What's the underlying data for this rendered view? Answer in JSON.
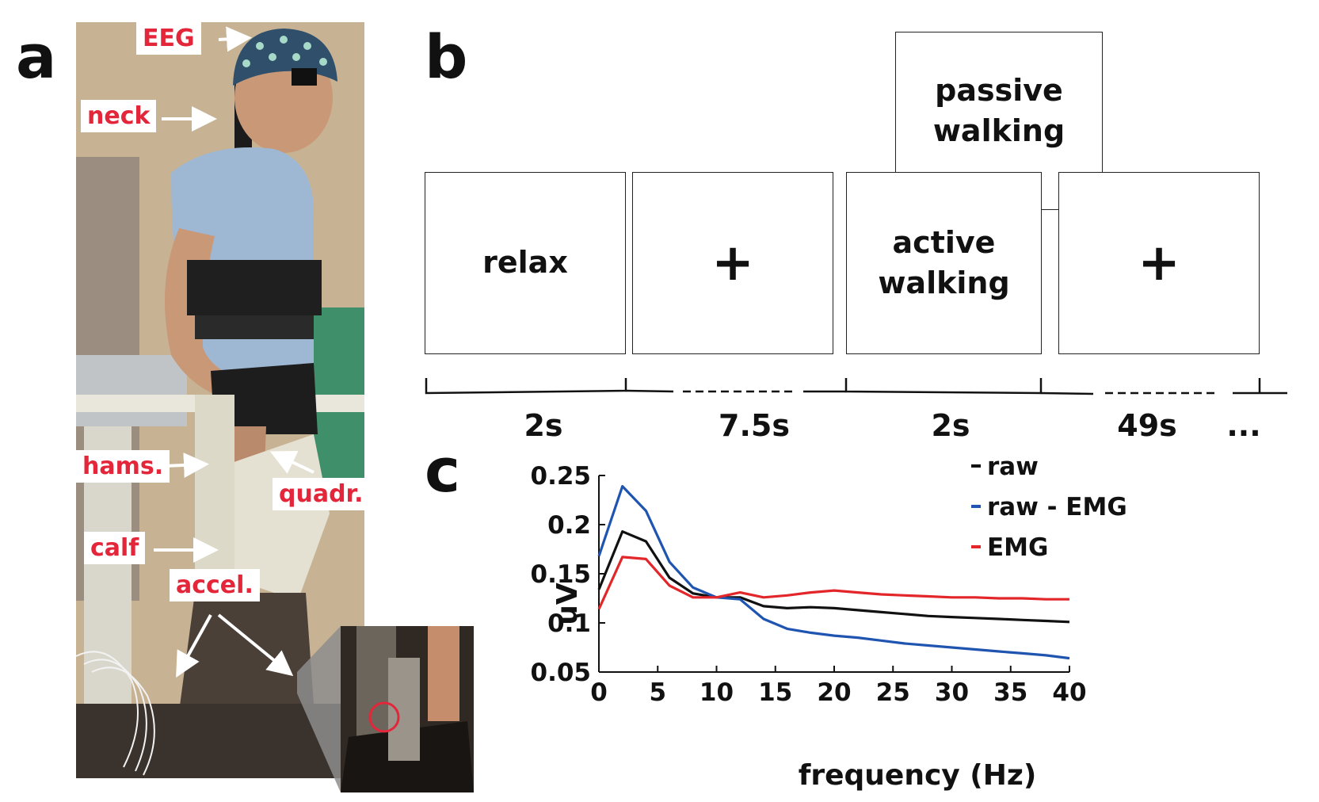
{
  "panels": {
    "a": "a",
    "b": "b",
    "c": "c"
  },
  "photo_labels": {
    "eeg": "EEG",
    "neck": "neck",
    "hams": "hams.",
    "quadr": "quadr.",
    "calf": "calf",
    "accel": "accel."
  },
  "colors": {
    "label_red": "#e3263a",
    "raw": "#111111",
    "raw_minus_emg": "#1f55b0",
    "emg": "#e3262a"
  },
  "protocol": {
    "boxes": {
      "relax": "relax",
      "fixation_1": "+",
      "active_line1": "active",
      "active_line2": "walking",
      "passive_line1": "passive",
      "passive_line2": "walking",
      "fixation_2": "+"
    },
    "durations": [
      "2s",
      "7.5s",
      "2s",
      "49s",
      "..."
    ]
  },
  "chart_data": {
    "type": "line",
    "xlabel": "frequency (Hz)",
    "ylabel": "uV",
    "xlim": [
      0,
      40
    ],
    "ylim": [
      0.05,
      0.25
    ],
    "xticks": [
      0,
      5,
      10,
      15,
      20,
      25,
      30,
      35,
      40
    ],
    "yticks": [
      0.05,
      0.1,
      0.15,
      0.2,
      0.25
    ],
    "ytick_labels": [
      "0.05",
      "0.1",
      "0.15",
      "0.2",
      "0.25"
    ],
    "grid": false,
    "legend_position": "top-right",
    "x": [
      0,
      2,
      4,
      6,
      8,
      10,
      12,
      14,
      16,
      18,
      20,
      22,
      24,
      26,
      28,
      30,
      32,
      34,
      36,
      38,
      40
    ],
    "series": [
      {
        "name": "raw",
        "color": "#111111",
        "values": [
          0.134,
          0.193,
          0.183,
          0.146,
          0.13,
          0.126,
          0.126,
          0.117,
          0.115,
          0.116,
          0.115,
          0.113,
          0.111,
          0.109,
          0.107,
          0.106,
          0.105,
          0.104,
          0.103,
          0.102,
          0.101
        ]
      },
      {
        "name": "raw - EMG",
        "color": "#1f55b0",
        "values": [
          0.168,
          0.239,
          0.214,
          0.162,
          0.136,
          0.126,
          0.124,
          0.104,
          0.094,
          0.09,
          0.087,
          0.085,
          0.082,
          0.079,
          0.077,
          0.075,
          0.073,
          0.071,
          0.069,
          0.067,
          0.064
        ]
      },
      {
        "name": "EMG",
        "color": "#e3262a",
        "values": [
          0.114,
          0.167,
          0.165,
          0.138,
          0.126,
          0.126,
          0.131,
          0.126,
          0.128,
          0.131,
          0.133,
          0.131,
          0.129,
          0.128,
          0.127,
          0.126,
          0.126,
          0.125,
          0.125,
          0.124,
          0.124
        ]
      }
    ]
  }
}
